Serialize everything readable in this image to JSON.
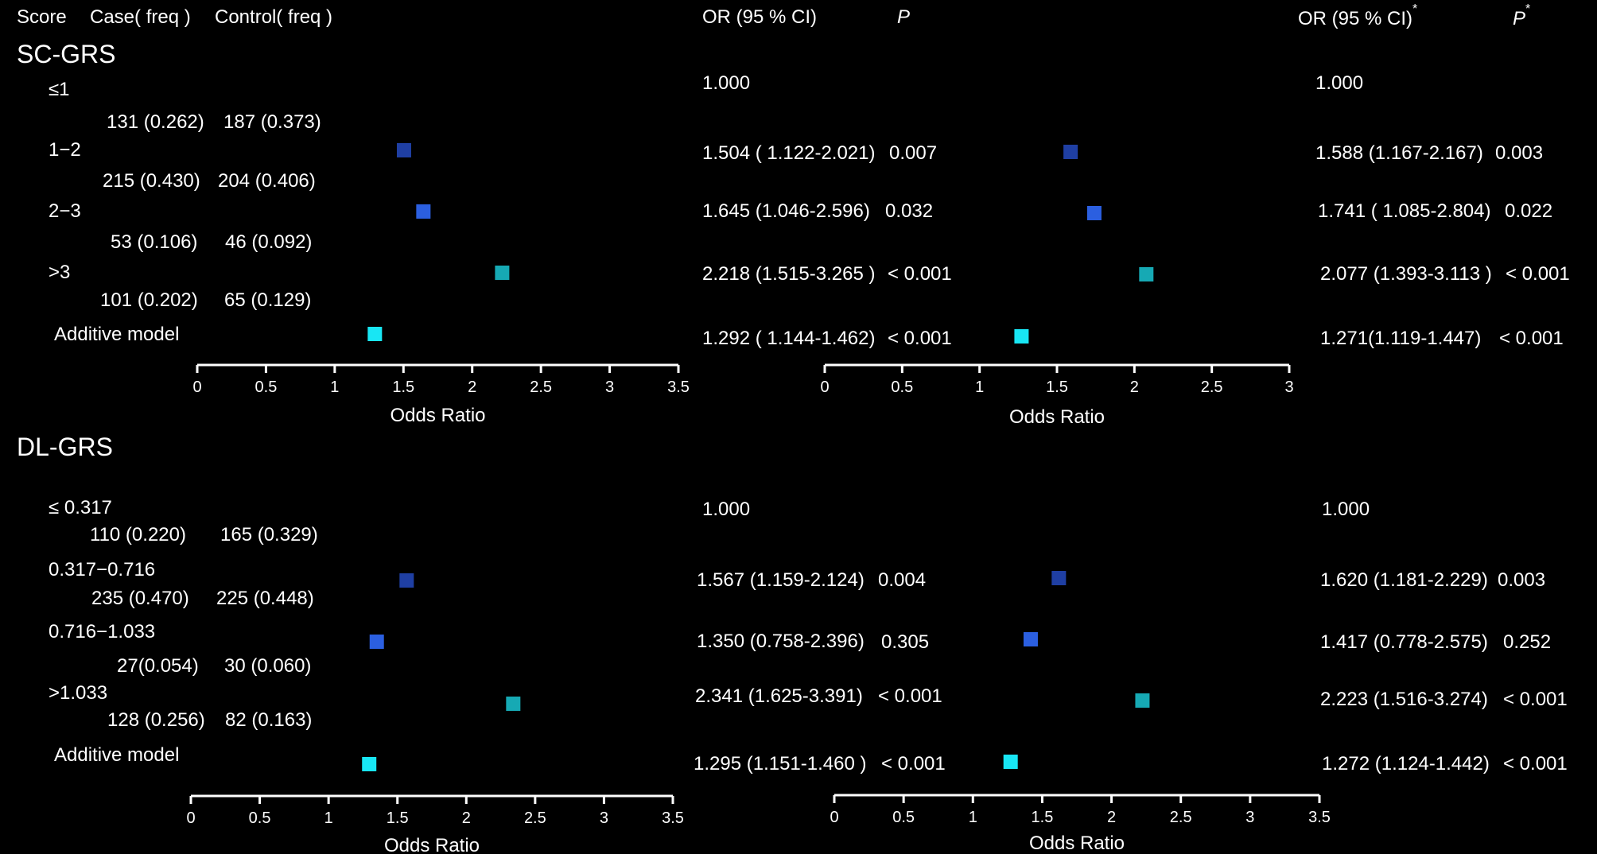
{
  "header": {
    "score": "Score",
    "case": "Case( freq )",
    "control": "Control( freq )",
    "or_ci": "OR (95 % CI)",
    "p": "P",
    "or_ci_adj": "OR (95 % CI)",
    "adj_mark": "*",
    "p_adj": "P",
    "p_adj_mark": "*"
  },
  "colors": {
    "background": "#000000",
    "level1": "#1f3fa3",
    "level2": "#2b5fe0",
    "level3": "#16a9b4",
    "additive": "#18e6f4"
  },
  "chart_data": [
    {
      "type": "forest",
      "title": "SC-GRS",
      "rows": [
        {
          "label": "≤1",
          "case": "131 (0.262)",
          "control": "187 (0.373)",
          "or_ci": "1.000",
          "p": "",
          "or_ci_adj": "1.000",
          "p_adj": ""
        },
        {
          "label": "1−2",
          "case": "215 (0.430)",
          "control": "204 (0.406)",
          "or_ci": "1.504 ( 1.122-2.021)",
          "p": "0.007",
          "or_ci_adj": "1.588 (1.167-2.167)",
          "p_adj": "0.003"
        },
        {
          "label": "2−3",
          "case": "53 (0.106)",
          "control": "46 (0.092)",
          "or_ci": "1.645 (1.046-2.596)",
          "p": "0.032",
          "or_ci_adj": "1.741 ( 1.085-2.804)",
          "p_adj": "0.022"
        },
        {
          "label": ">3",
          "case": "101 (0.202)",
          "control": "65 (0.129)",
          "or_ci": "2.218 (1.515-3.265 )",
          "p": "< 0.001",
          "or_ci_adj": "2.077 (1.393-3.113 )",
          "p_adj": "< 0.001"
        },
        {
          "label": "Additive model",
          "case": "",
          "control": "",
          "or_ci": "1.292 ( 1.144-1.462)",
          "p": "< 0.001",
          "or_ci_adj": "1.271(1.119-1.447)",
          "p_adj": "< 0.001"
        }
      ],
      "or_values": [
        1.504,
        1.645,
        2.218,
        1.292
      ],
      "or_adj_values": [
        1.588,
        1.741,
        2.077,
        1.271
      ],
      "axis_crude": {
        "xlim": [
          0,
          3.5
        ],
        "ticks": [
          "0",
          "0.5",
          "1",
          "1.5",
          "2",
          "2.5",
          "3",
          "3.5"
        ],
        "xlabel": "Odds Ratio"
      },
      "axis_adj": {
        "xlim": [
          0,
          3
        ],
        "ticks": [
          "0",
          "0.5",
          "1",
          "1.5",
          "2",
          "2.5",
          "3"
        ],
        "xlabel": "Odds Ratio"
      }
    },
    {
      "type": "forest",
      "title": "DL-GRS",
      "rows": [
        {
          "label": "≤ 0.317",
          "case": "110 (0.220)",
          "control": "165 (0.329)",
          "or_ci": "1.000",
          "p": "",
          "or_ci_adj": "1.000",
          "p_adj": ""
        },
        {
          "label": "0.317−0.716",
          "case": "235 (0.470)",
          "control": "225 (0.448)",
          "or_ci": "1.567 (1.159-2.124)",
          "p": "0.004",
          "or_ci_adj": "1.620 (1.181-2.229)",
          "p_adj": "0.003"
        },
        {
          "label": "0.716−1.033",
          "case": "27(0.054)",
          "control": "30 (0.060)",
          "or_ci": "1.350 (0.758-2.396)",
          "p": "0.305",
          "or_ci_adj": "1.417 (0.778-2.575)",
          "p_adj": "0.252"
        },
        {
          "label": ">1.033",
          "case": "128 (0.256)",
          "control": "82 (0.163)",
          "or_ci": "2.341 (1.625-3.391)",
          "p": "< 0.001",
          "or_ci_adj": "2.223 (1.516-3.274)",
          "p_adj": "< 0.001"
        },
        {
          "label": "Additive model",
          "case": "",
          "control": "",
          "or_ci": "1.295 (1.151-1.460 )",
          "p": "< 0.001",
          "or_ci_adj": "1.272 (1.124-1.442)",
          "p_adj": "< 0.001"
        }
      ],
      "or_values": [
        1.567,
        1.35,
        2.341,
        1.295
      ],
      "or_adj_values": [
        1.62,
        1.417,
        2.223,
        1.272
      ],
      "axis_crude": {
        "xlim": [
          0,
          3.5
        ],
        "ticks": [
          "0",
          "0.5",
          "1",
          "1.5",
          "2",
          "2.5",
          "3",
          "3.5"
        ],
        "xlabel": "Odds Ratio"
      },
      "axis_adj": {
        "xlim": [
          0,
          3.5
        ],
        "ticks": [
          "0",
          "0.5",
          "1",
          "1.5",
          "2",
          "2.5",
          "3",
          "3.5"
        ],
        "xlabel": "Odds Ratio"
      }
    }
  ]
}
